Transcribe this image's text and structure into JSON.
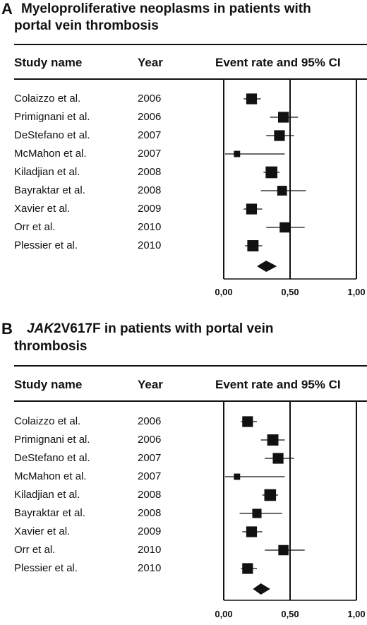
{
  "chart_data": [
    {
      "type": "forest",
      "panel_label": "A",
      "title": "Myeloproliferative neoplasms in patients with portal vein thrombosis",
      "title_lines": [
        "Myeloproliferative neoplasms in patients with",
        "portal vein thrombosis"
      ],
      "columns": {
        "study": "Study name",
        "year": "Year",
        "effect": "Event rate and  95% CI"
      },
      "xlim": [
        0,
        1
      ],
      "ticks": [
        "0,00",
        "0,50",
        "1,00"
      ],
      "studies": [
        {
          "name": "Colaizzo et al.",
          "year": "2006",
          "rate": 0.21,
          "lo": 0.15,
          "hi": 0.28,
          "weight": 0.8
        },
        {
          "name": "Primignani et al.",
          "year": "2006",
          "rate": 0.45,
          "lo": 0.35,
          "hi": 0.56,
          "weight": 0.8
        },
        {
          "name": "DeStefano et al.",
          "year": "2007",
          "rate": 0.42,
          "lo": 0.32,
          "hi": 0.53,
          "weight": 0.8
        },
        {
          "name": "McMahon et al.",
          "year": "2007",
          "rate": 0.1,
          "lo": 0.01,
          "hi": 0.46,
          "weight": 0.35
        },
        {
          "name": "Kiladjian et al.",
          "year": "2008",
          "rate": 0.36,
          "lo": 0.3,
          "hi": 0.42,
          "weight": 0.9
        },
        {
          "name": "Bayraktar et al.",
          "year": "2008",
          "rate": 0.44,
          "lo": 0.28,
          "hi": 0.62,
          "weight": 0.7
        },
        {
          "name": "Xavier et al.",
          "year": "2009",
          "rate": 0.21,
          "lo": 0.15,
          "hi": 0.29,
          "weight": 0.8
        },
        {
          "name": "Orr et al.",
          "year": "2010",
          "rate": 0.46,
          "lo": 0.32,
          "hi": 0.61,
          "weight": 0.75
        },
        {
          "name": "Plessier et al.",
          "year": "2010",
          "rate": 0.22,
          "lo": 0.16,
          "hi": 0.29,
          "weight": 0.85
        }
      ],
      "pooled": {
        "rate": 0.32,
        "lo": 0.25,
        "hi": 0.4
      }
    },
    {
      "type": "forest",
      "panel_label": "B",
      "title": "JAK2V617F in patients with portal vein thrombosis",
      "title_lines": [
        "JAK2V617F in patients with portal vein",
        "thrombosis"
      ],
      "title_italic_prefix": "JAK",
      "columns": {
        "study": "Study name",
        "year": "Year",
        "effect": "Event rate and  95% CI"
      },
      "xlim": [
        0,
        1
      ],
      "ticks": [
        "0,00",
        "0,50",
        "1,00"
      ],
      "studies": [
        {
          "name": "Colaizzo et al.",
          "year": "2006",
          "rate": 0.18,
          "lo": 0.13,
          "hi": 0.25,
          "weight": 0.8
        },
        {
          "name": "Primignani et al.",
          "year": "2006",
          "rate": 0.37,
          "lo": 0.28,
          "hi": 0.46,
          "weight": 0.85
        },
        {
          "name": "DeStefano et al.",
          "year": "2007",
          "rate": 0.41,
          "lo": 0.31,
          "hi": 0.53,
          "weight": 0.8
        },
        {
          "name": "McMahon et al.",
          "year": "2007",
          "rate": 0.1,
          "lo": 0.01,
          "hi": 0.46,
          "weight": 0.35
        },
        {
          "name": "Kiladjian et al.",
          "year": "2008",
          "rate": 0.35,
          "lo": 0.29,
          "hi": 0.41,
          "weight": 0.9
        },
        {
          "name": "Bayraktar et al.",
          "year": "2008",
          "rate": 0.25,
          "lo": 0.12,
          "hi": 0.44,
          "weight": 0.65
        },
        {
          "name": "Xavier et al.",
          "year": "2009",
          "rate": 0.21,
          "lo": 0.14,
          "hi": 0.29,
          "weight": 0.8
        },
        {
          "name": "Orr et al.",
          "year": "2010",
          "rate": 0.45,
          "lo": 0.31,
          "hi": 0.61,
          "weight": 0.75
        },
        {
          "name": "Plessier et al.",
          "year": "2010",
          "rate": 0.18,
          "lo": 0.13,
          "hi": 0.25,
          "weight": 0.8
        }
      ],
      "pooled": {
        "rate": 0.28,
        "lo": 0.22,
        "hi": 0.35
      }
    }
  ]
}
